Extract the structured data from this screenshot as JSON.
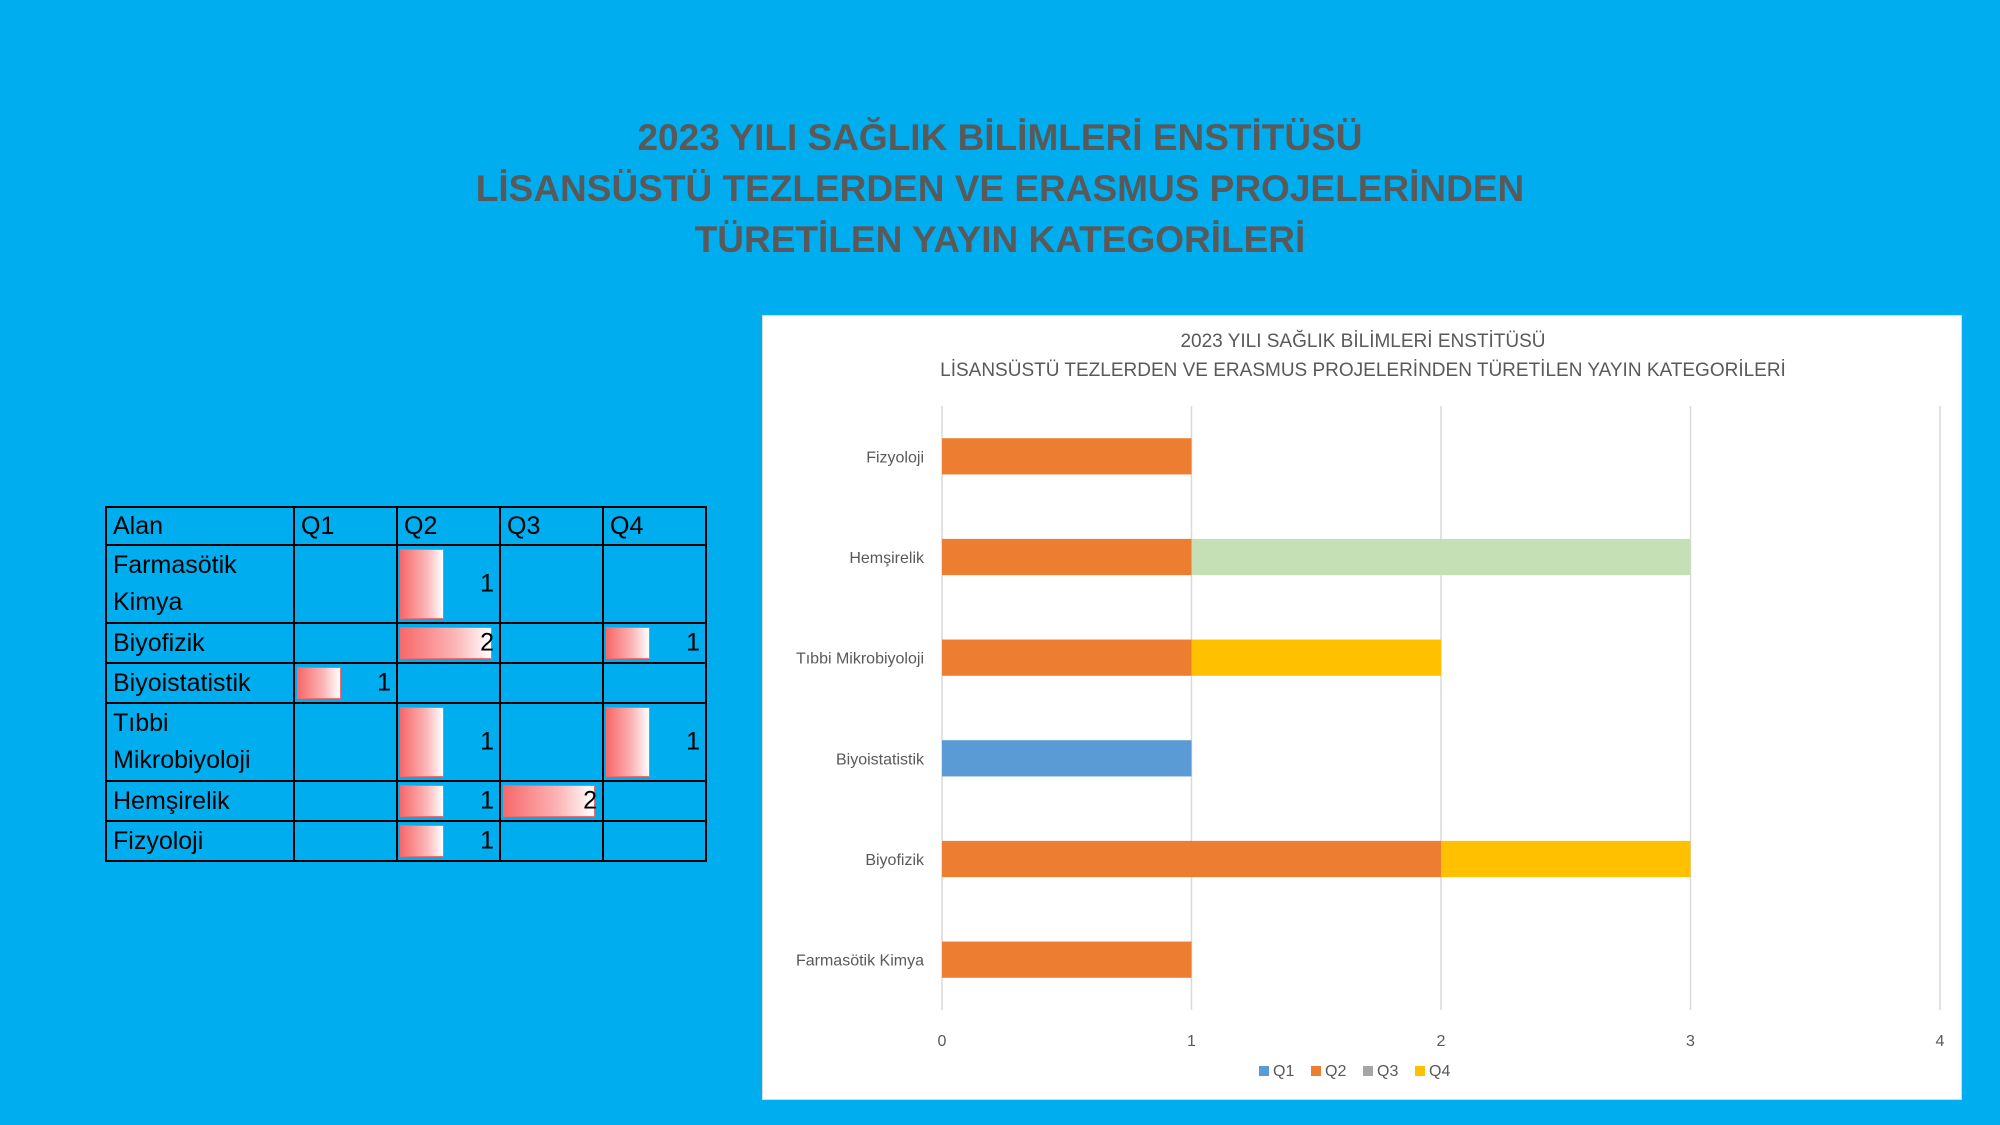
{
  "slide": {
    "title_lines": [
      "2023 YILI SAĞLIK BİLİMLERİ ENSTİTÜSÜ",
      "LİSANSÜSTÜ TEZLERDEN VE ERASMUS PROJELERİNDEN",
      "TÜRETİLEN YAYIN KATEGORİLERİ"
    ]
  },
  "table": {
    "headers": [
      "Alan",
      "Q1",
      "Q2",
      "Q3",
      "Q4"
    ],
    "max_value": 2,
    "rows": [
      {
        "label": [
          "Farmasötik",
          "Kimya"
        ],
        "values": [
          "",
          "1",
          "",
          ""
        ]
      },
      {
        "label": [
          "Biyofizik"
        ],
        "values": [
          "",
          "2",
          "",
          "1"
        ]
      },
      {
        "label": [
          "Biyoistatistik"
        ],
        "values": [
          "1",
          "",
          "",
          ""
        ]
      },
      {
        "label": [
          "Tıbbi",
          "Mikrobiyoloji"
        ],
        "values": [
          "",
          "1",
          "",
          "1"
        ]
      },
      {
        "label": [
          "Hemşirelik"
        ],
        "values": [
          "",
          "1",
          "2",
          ""
        ]
      },
      {
        "label": [
          "Fizyoloji"
        ],
        "values": [
          "",
          "1",
          "",
          ""
        ]
      }
    ]
  },
  "chart_data": {
    "type": "bar",
    "orientation": "horizontal",
    "stacked": true,
    "title": "2023 YILI SAĞLIK BİLİMLERİ ENSTİTÜSÜ",
    "subtitle": "LİSANSÜSTÜ TEZLERDEN VE ERASMUS PROJELERİNDEN TÜRETİLEN YAYIN KATEGORİLERİ",
    "categories": [
      "Fizyoloji",
      "Hemşirelik",
      "Tıbbi Mikrobiyoloji",
      "Biyoistatistik",
      "Biyofizik",
      "Farmasötik Kimya"
    ],
    "series": [
      {
        "name": "Q1",
        "color": "#5B9BD5",
        "values": [
          0,
          0,
          0,
          1,
          0,
          0
        ]
      },
      {
        "name": "Q2",
        "color": "#ED7D31",
        "values": [
          1,
          1,
          1,
          0,
          2,
          1
        ]
      },
      {
        "name": "Q3",
        "color": "#C5E0B4",
        "legend_color": "#A5A5A5",
        "values": [
          0,
          2,
          0,
          0,
          0,
          0
        ]
      },
      {
        "name": "Q4",
        "color": "#FFC000",
        "values": [
          0,
          0,
          1,
          0,
          1,
          0
        ]
      }
    ],
    "xlim": [
      0,
      4
    ],
    "xticks": [
      "0",
      "1",
      "2",
      "3",
      "4"
    ],
    "grid": true,
    "legend_position": "bottom"
  }
}
